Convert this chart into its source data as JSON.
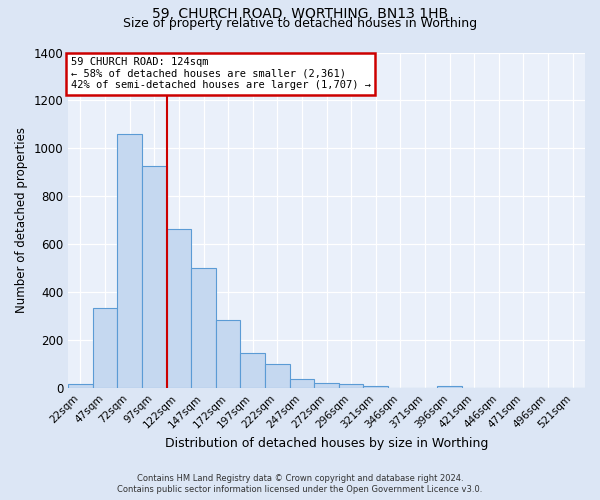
{
  "title": "59, CHURCH ROAD, WORTHING, BN13 1HB",
  "subtitle": "Size of property relative to detached houses in Worthing",
  "xlabel": "Distribution of detached houses by size in Worthing",
  "ylabel": "Number of detached properties",
  "bar_labels": [
    "22sqm",
    "47sqm",
    "72sqm",
    "97sqm",
    "122sqm",
    "147sqm",
    "172sqm",
    "197sqm",
    "222sqm",
    "247sqm",
    "272sqm",
    "296sqm",
    "321sqm",
    "346sqm",
    "371sqm",
    "396sqm",
    "421sqm",
    "446sqm",
    "471sqm",
    "496sqm",
    "521sqm"
  ],
  "bar_values": [
    18,
    335,
    1060,
    925,
    665,
    500,
    285,
    148,
    100,
    40,
    22,
    18,
    10,
    0,
    0,
    10,
    0,
    0,
    0,
    0,
    0
  ],
  "bar_color": "#c5d8f0",
  "bar_edge_color": "#5b9bd5",
  "vline_x_idx": 3,
  "vline_color": "#cc0000",
  "annotation_title": "59 CHURCH ROAD: 124sqm",
  "annotation_line1": "← 58% of detached houses are smaller (2,361)",
  "annotation_line2": "42% of semi-detached houses are larger (1,707) →",
  "annotation_box_color": "#ffffff",
  "annotation_box_edge": "#cc0000",
  "ylim": [
    0,
    1400
  ],
  "yticks": [
    0,
    200,
    400,
    600,
    800,
    1000,
    1200,
    1400
  ],
  "bg_color": "#dce6f5",
  "plot_bg_color": "#eaf0fa",
  "footer1": "Contains HM Land Registry data © Crown copyright and database right 2024.",
  "footer2": "Contains public sector information licensed under the Open Government Licence v3.0."
}
